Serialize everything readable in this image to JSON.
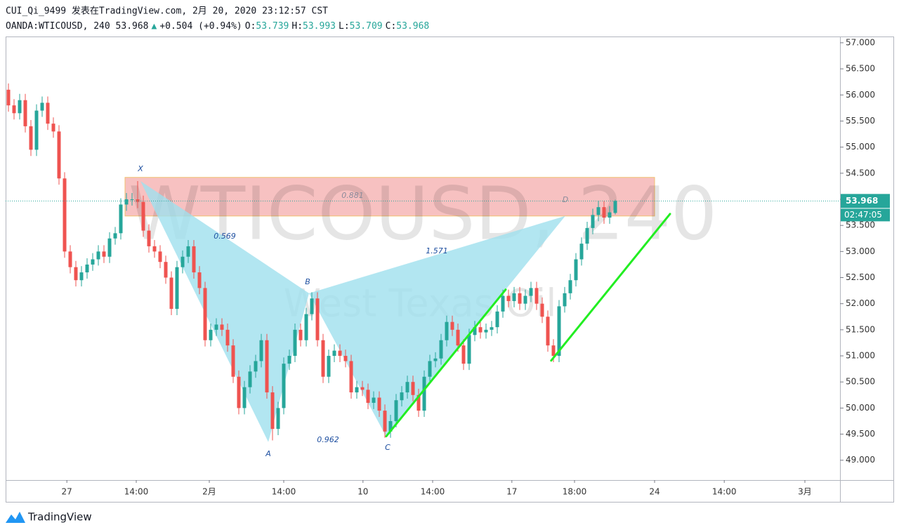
{
  "header": {
    "line1": "CUI_Qi_9499 发表在TradingView.com, 2月 20, 2020 23:12:57 CST",
    "symbol": "OANDA:WTICOUSD, 240",
    "last": "53.968",
    "arrow": "▲",
    "change": "+0.504 (+0.94%)",
    "o_label": "O:",
    "open": "53.739",
    "h_label": "H:",
    "high": "53.993",
    "l_label": "L:",
    "low": "53.709",
    "c_label": "C:",
    "close": "53.968"
  },
  "chart_data": {
    "type": "candlestick",
    "watermark": "WTICOUSD, 240",
    "watermark_sub": "West Texas Oil",
    "up_color": "#26a69a",
    "down_color": "#ef5350",
    "ohlc": [
      [
        56.1,
        56.22,
        55.68,
        55.8
      ],
      [
        55.8,
        55.92,
        55.53,
        55.65
      ],
      [
        55.65,
        56.02,
        55.53,
        55.9
      ],
      [
        55.9,
        56.02,
        55.28,
        55.4
      ],
      [
        55.4,
        55.52,
        54.83,
        54.95
      ],
      [
        54.95,
        55.82,
        54.83,
        55.7
      ],
      [
        55.7,
        55.97,
        55.58,
        55.85
      ],
      [
        55.85,
        55.97,
        55.33,
        55.45
      ],
      [
        55.45,
        55.57,
        55.18,
        55.3
      ],
      [
        55.3,
        55.42,
        54.28,
        54.4
      ],
      [
        54.4,
        54.52,
        52.88,
        53.0
      ],
      [
        53.0,
        53.12,
        52.58,
        52.7
      ],
      [
        52.7,
        52.82,
        52.33,
        52.45
      ],
      [
        52.45,
        52.72,
        52.33,
        52.6
      ],
      [
        52.6,
        52.87,
        52.48,
        52.75
      ],
      [
        52.75,
        52.97,
        52.63,
        52.85
      ],
      [
        52.85,
        53.12,
        52.73,
        53.0
      ],
      [
        53.0,
        53.12,
        52.78,
        52.9
      ],
      [
        52.9,
        53.37,
        52.78,
        53.25
      ],
      [
        53.25,
        53.47,
        53.13,
        53.35
      ],
      [
        53.35,
        54.02,
        53.23,
        53.9
      ],
      [
        53.9,
        54.12,
        53.78,
        54.0
      ],
      [
        54.0,
        54.12,
        53.88,
        54.0
      ],
      [
        54.0,
        54.35,
        53.83,
        53.95
      ],
      [
        53.95,
        54.07,
        53.28,
        53.4
      ],
      [
        53.4,
        53.52,
        52.98,
        53.1
      ],
      [
        53.1,
        53.22,
        52.88,
        53.0
      ],
      [
        53.0,
        53.12,
        52.68,
        52.8
      ],
      [
        52.8,
        52.92,
        52.38,
        52.5
      ],
      [
        52.5,
        52.62,
        51.78,
        51.9
      ],
      [
        51.9,
        52.82,
        51.78,
        52.7
      ],
      [
        52.7,
        53.02,
        52.58,
        52.9
      ],
      [
        52.9,
        53.22,
        52.78,
        53.1
      ],
      [
        53.1,
        53.22,
        52.48,
        52.6
      ],
      [
        52.6,
        52.72,
        52.18,
        52.3
      ],
      [
        52.3,
        52.42,
        51.18,
        51.3
      ],
      [
        51.3,
        51.62,
        51.18,
        51.5
      ],
      [
        51.5,
        51.72,
        51.38,
        51.6
      ],
      [
        51.6,
        51.72,
        51.38,
        51.5
      ],
      [
        51.5,
        51.62,
        51.08,
        51.2
      ],
      [
        51.2,
        51.32,
        50.48,
        50.6
      ],
      [
        50.6,
        50.72,
        49.88,
        50.0
      ],
      [
        50.0,
        50.52,
        49.88,
        50.4
      ],
      [
        50.4,
        50.82,
        50.28,
        50.7
      ],
      [
        50.7,
        51.02,
        50.58,
        50.9
      ],
      [
        50.9,
        51.42,
        50.78,
        51.3
      ],
      [
        51.3,
        51.42,
        50.18,
        50.3
      ],
      [
        50.3,
        50.42,
        49.38,
        49.6
      ],
      [
        49.6,
        50.12,
        49.48,
        50.0
      ],
      [
        50.0,
        50.97,
        49.88,
        50.85
      ],
      [
        50.85,
        51.12,
        50.73,
        51.0
      ],
      [
        51.0,
        51.62,
        50.88,
        51.5
      ],
      [
        51.5,
        51.62,
        51.18,
        51.3
      ],
      [
        51.3,
        51.92,
        51.18,
        51.8
      ],
      [
        51.8,
        52.22,
        51.68,
        52.1
      ],
      [
        52.1,
        52.22,
        51.18,
        51.3
      ],
      [
        51.3,
        51.42,
        50.48,
        50.6
      ],
      [
        50.6,
        51.12,
        50.48,
        51.0
      ],
      [
        51.0,
        51.22,
        50.88,
        51.1
      ],
      [
        51.1,
        51.22,
        50.88,
        51.0
      ],
      [
        51.0,
        51.12,
        50.78,
        50.9
      ],
      [
        50.9,
        51.02,
        50.18,
        50.3
      ],
      [
        50.3,
        50.52,
        50.18,
        50.4
      ],
      [
        50.4,
        50.52,
        50.23,
        50.35
      ],
      [
        50.35,
        50.47,
        49.98,
        50.1
      ],
      [
        50.1,
        50.32,
        49.98,
        50.2
      ],
      [
        50.2,
        50.32,
        49.83,
        49.95
      ],
      [
        49.95,
        50.07,
        49.43,
        49.55
      ],
      [
        49.55,
        49.87,
        49.43,
        49.75
      ],
      [
        49.75,
        50.27,
        49.63,
        50.15
      ],
      [
        50.15,
        50.42,
        50.03,
        50.3
      ],
      [
        50.3,
        50.62,
        50.18,
        50.5
      ],
      [
        50.5,
        50.62,
        50.13,
        50.25
      ],
      [
        50.25,
        50.37,
        49.83,
        49.95
      ],
      [
        49.95,
        50.72,
        49.83,
        50.6
      ],
      [
        50.6,
        51.02,
        50.48,
        50.9
      ],
      [
        50.9,
        51.07,
        50.78,
        50.95
      ],
      [
        50.95,
        51.42,
        50.83,
        51.3
      ],
      [
        51.3,
        51.77,
        51.18,
        51.65
      ],
      [
        51.65,
        51.77,
        51.38,
        51.5
      ],
      [
        51.5,
        51.62,
        51.08,
        51.2
      ],
      [
        51.2,
        51.32,
        50.73,
        50.85
      ],
      [
        50.85,
        51.52,
        50.73,
        51.4
      ],
      [
        51.4,
        51.67,
        51.28,
        51.55
      ],
      [
        51.55,
        51.67,
        51.33,
        51.45
      ],
      [
        51.45,
        51.62,
        51.33,
        51.5
      ],
      [
        51.5,
        51.67,
        51.38,
        51.55
      ],
      [
        51.55,
        51.97,
        51.43,
        51.85
      ],
      [
        51.85,
        52.27,
        51.73,
        52.15
      ],
      [
        52.15,
        52.27,
        51.93,
        52.05
      ],
      [
        52.05,
        52.32,
        51.93,
        52.2
      ],
      [
        52.2,
        52.32,
        51.88,
        52.0
      ],
      [
        52.0,
        52.27,
        51.88,
        52.15
      ],
      [
        52.15,
        52.42,
        52.03,
        52.3
      ],
      [
        52.3,
        52.42,
        51.88,
        52.0
      ],
      [
        52.0,
        52.12,
        51.63,
        51.75
      ],
      [
        51.75,
        51.87,
        51.08,
        51.2
      ],
      [
        51.2,
        51.32,
        50.88,
        51.0
      ],
      [
        51.0,
        52.07,
        50.88,
        51.95
      ],
      [
        51.95,
        52.32,
        51.83,
        52.2
      ],
      [
        52.2,
        52.57,
        52.08,
        52.45
      ],
      [
        52.45,
        52.97,
        52.33,
        52.85
      ],
      [
        52.85,
        53.27,
        52.73,
        53.15
      ],
      [
        53.15,
        53.57,
        53.03,
        53.45
      ],
      [
        53.45,
        53.82,
        53.33,
        53.7
      ],
      [
        53.7,
        53.97,
        53.58,
        53.85
      ],
      [
        53.85,
        53.97,
        53.53,
        53.65
      ],
      [
        53.65,
        53.87,
        53.53,
        53.75
      ],
      [
        53.739,
        53.993,
        53.709,
        53.968
      ]
    ],
    "xlim": [
      -0.5,
      148
    ],
    "xticks": [
      {
        "value": 10.4,
        "label": "27"
      },
      {
        "value": 22.75,
        "label": "14:00"
      },
      {
        "value": 35.75,
        "label": "2月"
      },
      {
        "value": 49,
        "label": "14:00"
      },
      {
        "value": 63.1,
        "label": "10"
      },
      {
        "value": 75.5,
        "label": "14:00"
      },
      {
        "value": 89.6,
        "label": "17"
      },
      {
        "value": 100.75,
        "label": "18:00"
      },
      {
        "value": 115,
        "label": "24"
      },
      {
        "value": 127.4,
        "label": "14:00"
      },
      {
        "value": 141.75,
        "label": "3月"
      }
    ],
    "ylim": [
      48.62,
      57.12
    ],
    "yticks": [
      {
        "value": 49,
        "label": "49.000"
      },
      {
        "value": 49.5,
        "label": "49.500"
      },
      {
        "value": 50,
        "label": "50.000"
      },
      {
        "value": 50.5,
        "label": "50.500"
      },
      {
        "value": 51,
        "label": "51.000"
      },
      {
        "value": 51.5,
        "label": "51.500"
      },
      {
        "value": 52,
        "label": "52.000"
      },
      {
        "value": 52.5,
        "label": "52.500"
      },
      {
        "value": 53,
        "label": "53.000"
      },
      {
        "value": 53.5,
        "label": "53.500"
      },
      {
        "value": 54,
        "label": "54.000"
      },
      {
        "value": 54.5,
        "label": "54.500"
      },
      {
        "value": 55,
        "label": "55.000"
      },
      {
        "value": 55.5,
        "label": "55.500"
      },
      {
        "value": 56,
        "label": "56.000"
      },
      {
        "value": 56.5,
        "label": "56.500"
      },
      {
        "value": 57,
        "label": "57.000"
      }
    ],
    "last_price_label": "53.968",
    "countdown": "02:47:05",
    "zone": {
      "color": "#f4a6a6",
      "x": [
        20.75,
        115
      ],
      "y": [
        53.68,
        54.42
      ]
    },
    "pattern": {
      "color": "#9fe0ee",
      "points": [
        {
          "label": "X",
          "x": 23.5,
          "y": 54.35
        },
        {
          "label": "A",
          "x": 46.25,
          "y": 49.35
        },
        {
          "label": "B",
          "x": 53.5,
          "y": 52.2
        },
        {
          "label": "C",
          "x": 67.25,
          "y": 49.45
        },
        {
          "label": "D",
          "x": 99.1,
          "y": 53.68
        }
      ],
      "ratios": [
        "0.569",
        "0.962",
        "1.571",
        "0.881"
      ]
    },
    "trendline_color": "#22ee22",
    "trendlines": [
      {
        "x": [
          67.25,
          88.5
        ],
        "y": [
          49.46,
          52.27
        ]
      },
      {
        "x": [
          96.6,
          117.75
        ],
        "y": [
          50.91,
          53.72
        ]
      }
    ]
  },
  "footer": {
    "brand": "TradingView"
  }
}
